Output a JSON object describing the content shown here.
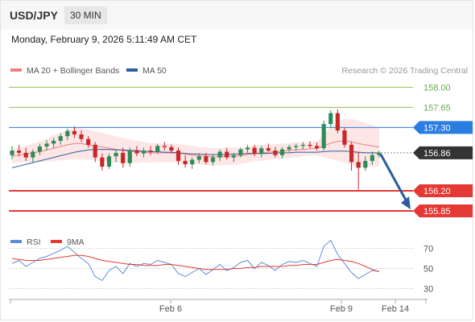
{
  "header": {
    "symbol": "USD/JPY",
    "timeframe": "30 MIN",
    "timestamp": "Monday, February 9, 2026 5:11:49 AM CET"
  },
  "credit": "Research © 2026 Trading Central",
  "colors": {
    "bollinger": "#f08080",
    "bollinger_fill": "#fde3e3",
    "ma50": "#2d5d9f",
    "resistance_green": "#8bc34a",
    "pivot_blue": "#2a7de1",
    "support_red": "#e53935",
    "last_price_bg": "#333333",
    "candle_up": "#2e8b57",
    "candle_down": "#c62828",
    "arrow": "#2d5d9f",
    "rsi": "#5b8ddb",
    "rsi_ma": "#e53935"
  },
  "chart_data": [
    {
      "type": "candlestick",
      "legend": [
        {
          "label": "MA 20 + Bollinger Bands",
          "color": "#f08080"
        },
        {
          "label": "MA 50",
          "color": "#2d5d9f"
        }
      ],
      "ylim": [
        155.5,
        158.3
      ],
      "x_ticks": [
        "Feb 6",
        "Feb 9",
        "Feb 14"
      ],
      "levels": [
        {
          "label": "158.00",
          "value": 158.0,
          "style": "resistance"
        },
        {
          "label": "157.65",
          "value": 157.65,
          "style": "resistance"
        },
        {
          "label": "157.30",
          "value": 157.3,
          "style": "pivot"
        },
        {
          "label": "156.86",
          "value": 156.86,
          "style": "last"
        },
        {
          "label": "156.20",
          "value": 156.2,
          "style": "support"
        },
        {
          "label": "155.85",
          "value": 155.85,
          "style": "support"
        }
      ],
      "projection": {
        "from": 156.86,
        "to": 155.85
      },
      "candles_ohlc": [
        [
          156.82,
          156.98,
          156.75,
          156.9
        ],
        [
          156.9,
          157.0,
          156.8,
          156.86
        ],
        [
          156.86,
          156.95,
          156.72,
          156.78
        ],
        [
          156.78,
          156.92,
          156.7,
          156.88
        ],
        [
          156.88,
          157.02,
          156.82,
          156.97
        ],
        [
          156.97,
          157.08,
          156.9,
          157.02
        ],
        [
          157.02,
          157.12,
          156.95,
          157.07
        ],
        [
          157.07,
          157.2,
          157.0,
          157.15
        ],
        [
          157.15,
          157.28,
          157.08,
          157.24
        ],
        [
          157.24,
          157.32,
          157.12,
          157.18
        ],
        [
          157.18,
          157.25,
          157.05,
          157.1
        ],
        [
          157.1,
          157.15,
          156.95,
          157.0
        ],
        [
          157.0,
          157.05,
          156.7,
          156.78
        ],
        [
          156.78,
          156.85,
          156.55,
          156.62
        ],
        [
          156.62,
          156.85,
          156.58,
          156.8
        ],
        [
          156.8,
          156.92,
          156.7,
          156.86
        ],
        [
          156.86,
          156.95,
          156.6,
          156.68
        ],
        [
          156.68,
          156.95,
          156.62,
          156.9
        ],
        [
          156.9,
          156.98,
          156.8,
          156.85
        ],
        [
          156.85,
          156.95,
          156.78,
          156.9
        ],
        [
          156.9,
          156.98,
          156.82,
          156.88
        ],
        [
          156.88,
          157.02,
          156.84,
          156.98
        ],
        [
          156.98,
          157.05,
          156.9,
          156.96
        ],
        [
          156.96,
          157.0,
          156.85,
          156.9
        ],
        [
          156.9,
          156.95,
          156.65,
          156.72
        ],
        [
          156.72,
          156.82,
          156.6,
          156.66
        ],
        [
          156.66,
          156.78,
          156.58,
          156.74
        ],
        [
          156.74,
          156.84,
          156.68,
          156.8
        ],
        [
          156.8,
          156.86,
          156.66,
          156.7
        ],
        [
          156.7,
          156.84,
          156.64,
          156.78
        ],
        [
          156.78,
          156.92,
          156.72,
          156.88
        ],
        [
          156.88,
          156.95,
          156.74,
          156.78
        ],
        [
          156.78,
          156.86,
          156.7,
          156.82
        ],
        [
          156.82,
          156.95,
          156.78,
          156.92
        ],
        [
          156.92,
          157.0,
          156.86,
          156.95
        ],
        [
          156.95,
          157.0,
          156.8,
          156.84
        ],
        [
          156.84,
          156.98,
          156.78,
          156.94
        ],
        [
          156.94,
          157.02,
          156.88,
          156.9
        ],
        [
          156.9,
          156.96,
          156.78,
          156.82
        ],
        [
          156.82,
          156.96,
          156.76,
          156.92
        ],
        [
          156.92,
          157.0,
          156.88,
          156.96
        ],
        [
          156.96,
          157.02,
          156.9,
          156.98
        ],
        [
          156.98,
          157.05,
          156.92,
          157.0
        ],
        [
          157.0,
          157.06,
          156.94,
          156.98
        ],
        [
          156.98,
          157.04,
          156.9,
          156.94
        ],
        [
          156.94,
          157.42,
          156.9,
          157.36
        ],
        [
          157.36,
          157.6,
          157.3,
          157.55
        ],
        [
          157.55,
          157.62,
          157.2,
          157.25
        ],
        [
          157.25,
          157.3,
          156.95,
          157.0
        ],
        [
          157.0,
          157.05,
          156.55,
          156.7
        ],
        [
          156.7,
          156.88,
          156.22,
          156.6
        ],
        [
          156.6,
          156.8,
          156.55,
          156.72
        ],
        [
          156.72,
          156.88,
          156.65,
          156.82
        ],
        [
          156.82,
          156.9,
          156.78,
          156.86
        ]
      ],
      "bollinger_mid": [
        156.8,
        156.82,
        156.84,
        156.86,
        156.88,
        156.91,
        156.94,
        156.97,
        157.0,
        157.02,
        157.02,
        157.0,
        156.98,
        156.96,
        156.94,
        156.92,
        156.9,
        156.89,
        156.88,
        156.87,
        156.86,
        156.86,
        156.86,
        156.86,
        156.85,
        156.84,
        156.82,
        156.81,
        156.8,
        156.79,
        156.79,
        156.8,
        156.8,
        156.81,
        156.83,
        156.85,
        156.86,
        156.87,
        156.88,
        156.89,
        156.9,
        156.91,
        156.92,
        156.93,
        156.94,
        156.98,
        157.03,
        157.06,
        157.07,
        157.05,
        157.02,
        157.0,
        156.98,
        156.96
      ],
      "bollinger_width": [
        0.12,
        0.13,
        0.14,
        0.16,
        0.18,
        0.2,
        0.22,
        0.24,
        0.26,
        0.27,
        0.27,
        0.26,
        0.25,
        0.25,
        0.24,
        0.23,
        0.22,
        0.2,
        0.19,
        0.18,
        0.17,
        0.16,
        0.16,
        0.16,
        0.16,
        0.16,
        0.16,
        0.15,
        0.15,
        0.15,
        0.15,
        0.15,
        0.15,
        0.14,
        0.14,
        0.14,
        0.14,
        0.13,
        0.13,
        0.13,
        0.13,
        0.13,
        0.12,
        0.12,
        0.12,
        0.2,
        0.28,
        0.34,
        0.38,
        0.4,
        0.4,
        0.38,
        0.36,
        0.34
      ],
      "ma50": [
        156.6,
        156.63,
        156.66,
        156.69,
        156.72,
        156.75,
        156.78,
        156.81,
        156.84,
        156.87,
        156.89,
        156.91,
        156.92,
        156.92,
        156.92,
        156.91,
        156.91,
        156.9,
        156.9,
        156.89,
        156.88,
        156.88,
        156.87,
        156.87,
        156.86,
        156.85,
        156.84,
        156.84,
        156.83,
        156.83,
        156.83,
        156.83,
        156.84,
        156.84,
        156.85,
        156.85,
        156.85,
        156.85,
        156.86,
        156.86,
        156.86,
        156.87,
        156.87,
        156.87,
        156.87,
        156.88,
        156.89,
        156.89,
        156.89,
        156.88,
        156.87,
        156.86,
        156.86,
        156.86
      ]
    },
    {
      "type": "line",
      "legend": [
        {
          "label": "RSI",
          "color": "#5b8ddb"
        },
        {
          "label": "9MA",
          "color": "#e53935"
        }
      ],
      "ylim": [
        20,
        80
      ],
      "y_ticks": [
        70,
        50,
        30
      ],
      "series": [
        {
          "name": "RSI",
          "values": [
            55,
            58,
            52,
            56,
            60,
            62,
            65,
            68,
            72,
            66,
            60,
            55,
            42,
            38,
            48,
            52,
            45,
            55,
            52,
            55,
            54,
            58,
            56,
            54,
            45,
            42,
            46,
            50,
            44,
            49,
            54,
            48,
            51,
            56,
            58,
            50,
            56,
            53,
            48,
            54,
            57,
            56,
            58,
            55,
            52,
            72,
            78,
            64,
            55,
            46,
            40,
            44,
            48,
            47
          ]
        },
        {
          "name": "9MA",
          "values": [
            60,
            59,
            58,
            58,
            58,
            59,
            60,
            61,
            62,
            63,
            63,
            62,
            60,
            58,
            57,
            56,
            55,
            54,
            54,
            53,
            53,
            53,
            54,
            54,
            53,
            52,
            51,
            50,
            49,
            49,
            49,
            49,
            50,
            50,
            51,
            51,
            52,
            52,
            52,
            52,
            53,
            53,
            54,
            54,
            54,
            56,
            58,
            59,
            58,
            57,
            55,
            52,
            49,
            47
          ]
        }
      ]
    }
  ]
}
